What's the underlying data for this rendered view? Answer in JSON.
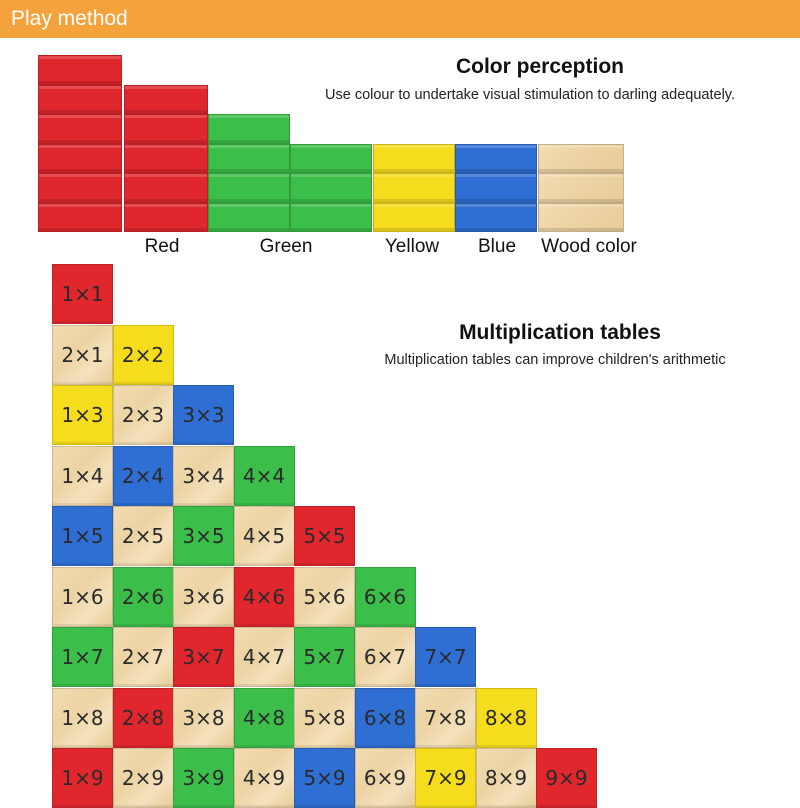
{
  "header": {
    "title": "Play method"
  },
  "color_perception": {
    "title": "Color perception",
    "subtitle": "Use colour to undertake visual stimulation to darling adequately.",
    "labels": [
      "Red",
      "Green",
      "Yellow",
      "Blue",
      "Wood color"
    ],
    "block_counts": [
      6,
      5,
      4,
      3,
      3,
      3,
      3
    ],
    "colors": {
      "red": "#e0272e",
      "green": "#3cbe4a",
      "yellow": "#f5dc1c",
      "blue": "#2f6ed2",
      "wood": "#ecd3a3",
      "header": "#f4a33c"
    }
  },
  "multiplication": {
    "title": "Multiplication tables",
    "subtitle": "Multiplication tables can improve children's arithmetic",
    "rows": [
      [
        {
          "t": "1×1",
          "c": "red"
        }
      ],
      [
        {
          "t": "2×1",
          "c": "wood"
        },
        {
          "t": "2×2",
          "c": "yellow"
        }
      ],
      [
        {
          "t": "1×3",
          "c": "yellow"
        },
        {
          "t": "2×3",
          "c": "wood"
        },
        {
          "t": "3×3",
          "c": "blue"
        }
      ],
      [
        {
          "t": "1×4",
          "c": "wood"
        },
        {
          "t": "2×4",
          "c": "blue"
        },
        {
          "t": "3×4",
          "c": "wood"
        },
        {
          "t": "4×4",
          "c": "green"
        }
      ],
      [
        {
          "t": "1×5",
          "c": "blue"
        },
        {
          "t": "2×5",
          "c": "wood"
        },
        {
          "t": "3×5",
          "c": "green"
        },
        {
          "t": "4×5",
          "c": "wood"
        },
        {
          "t": "5×5",
          "c": "red"
        }
      ],
      [
        {
          "t": "1×6",
          "c": "wood"
        },
        {
          "t": "2×6",
          "c": "green"
        },
        {
          "t": "3×6",
          "c": "wood"
        },
        {
          "t": "4×6",
          "c": "red"
        },
        {
          "t": "5×6",
          "c": "wood"
        },
        {
          "t": "6×6",
          "c": "green"
        }
      ],
      [
        {
          "t": "1×7",
          "c": "green"
        },
        {
          "t": "2×7",
          "c": "wood"
        },
        {
          "t": "3×7",
          "c": "red"
        },
        {
          "t": "4×7",
          "c": "wood"
        },
        {
          "t": "5×7",
          "c": "green"
        },
        {
          "t": "6×7",
          "c": "wood"
        },
        {
          "t": "7×7",
          "c": "blue"
        }
      ],
      [
        {
          "t": "1×8",
          "c": "wood"
        },
        {
          "t": "2×8",
          "c": "red"
        },
        {
          "t": "3×8",
          "c": "wood"
        },
        {
          "t": "4×8",
          "c": "green"
        },
        {
          "t": "5×8",
          "c": "wood"
        },
        {
          "t": "6×8",
          "c": "blue"
        },
        {
          "t": "7×8",
          "c": "wood"
        },
        {
          "t": "8×8",
          "c": "yellow"
        }
      ],
      [
        {
          "t": "1×9",
          "c": "red"
        },
        {
          "t": "2×9",
          "c": "wood"
        },
        {
          "t": "3×9",
          "c": "green"
        },
        {
          "t": "4×9",
          "c": "wood"
        },
        {
          "t": "5×9",
          "c": "blue"
        },
        {
          "t": "6×9",
          "c": "wood"
        },
        {
          "t": "7×9",
          "c": "yellow"
        },
        {
          "t": "8×9",
          "c": "wood"
        },
        {
          "t": "9×9",
          "c": "red"
        }
      ]
    ]
  }
}
